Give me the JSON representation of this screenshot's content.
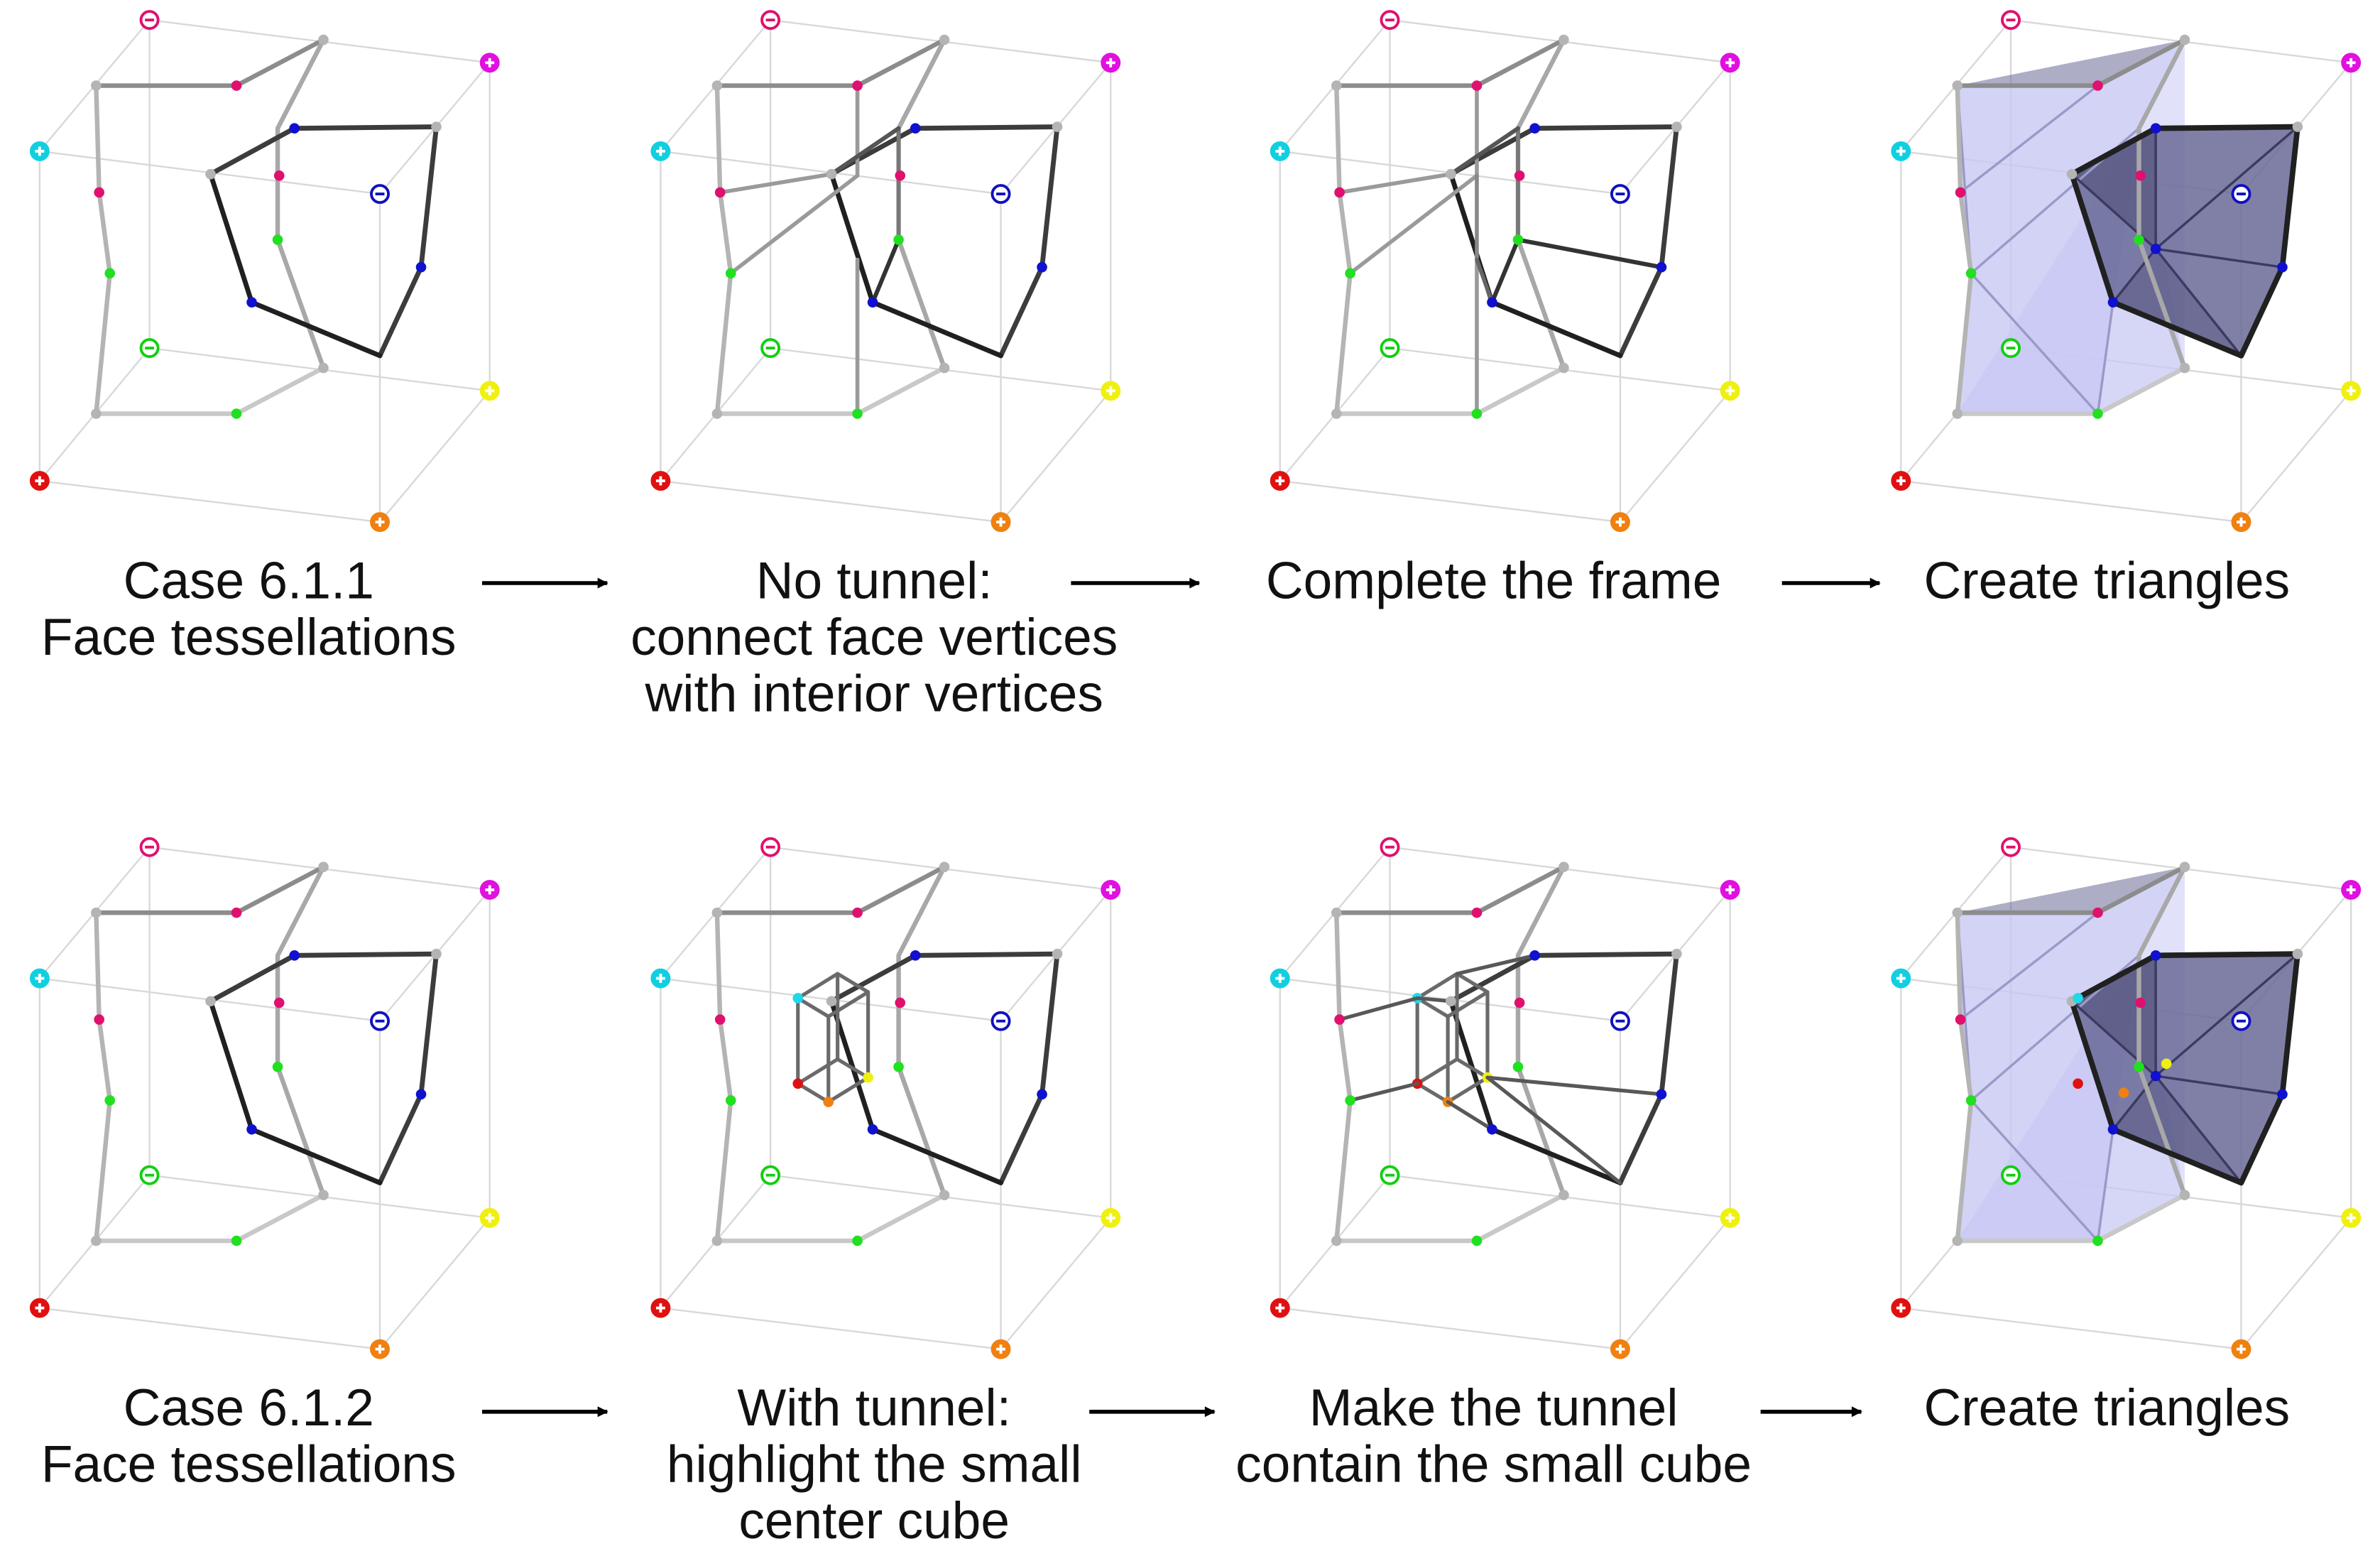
{
  "rows": [
    {
      "id": "case-6-1-1",
      "panels": [
        {
          "caption": [
            "Case 6.1.1",
            "Face tessellations"
          ],
          "stage": "face"
        },
        {
          "caption": [
            "No tunnel:",
            "connect face vertices",
            "with interior vertices"
          ],
          "stage": "connect"
        },
        {
          "caption": [
            "Complete the frame"
          ],
          "stage": "frame"
        },
        {
          "caption": [
            "Create triangles"
          ],
          "stage": "triangles"
        }
      ]
    },
    {
      "id": "case-6-1-2",
      "panels": [
        {
          "caption": [
            "Case 6.1.2",
            "Face tessellations"
          ],
          "stage": "face"
        },
        {
          "caption": [
            "With tunnel:",
            "highlight the small",
            "center cube"
          ],
          "stage": "tunnel_cube"
        },
        {
          "caption": [
            "Make the tunnel",
            "contain the small cube"
          ],
          "stage": "tunnel_frame"
        },
        {
          "caption": [
            "Create triangles"
          ],
          "stage": "tunnel_triangles"
        }
      ]
    }
  ],
  "corner_signs": {
    "top_back": "-",
    "top_right": "+",
    "left_top": "+",
    "back_center": "-",
    "front_inner": "-",
    "right_bottom": "+",
    "bottom_left": "+",
    "bottom_front": "+"
  },
  "colors": {
    "top_back": "#e0106e",
    "top_right": "#e010e0",
    "left_top": "#10d0e0",
    "back_center": "#1010c0",
    "front_inner": "#10d010",
    "right_bottom": "#f0f010",
    "bottom_left": "#e01010",
    "bottom_front": "#f08010",
    "surface_light": "#c8c8f4",
    "surface_dark": "#6a6a98"
  },
  "arrow_icon": "right-arrow-icon"
}
